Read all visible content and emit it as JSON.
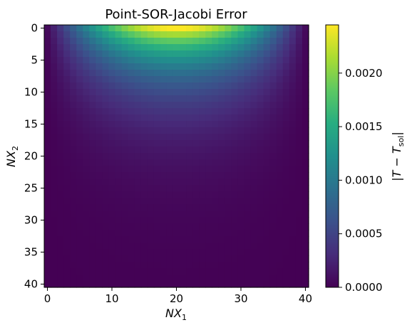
{
  "chart_data": {
    "type": "heatmap",
    "title": "Point-SOR-Jacobi Error",
    "xlabel": "NX",
    "xlabel_sub": "1",
    "ylabel": "NX",
    "ylabel_sub": "2",
    "grid": {
      "nx": 41,
      "ny": 41
    },
    "xlim": [
      -0.5,
      40.5
    ],
    "ylim": [
      40.5,
      -0.5
    ],
    "xticks": [
      0,
      10,
      20,
      30,
      40
    ],
    "yticks": [
      0,
      5,
      10,
      15,
      20,
      25,
      30,
      35,
      40
    ],
    "value_model": {
      "description_source": "estimated from visible color field",
      "peak_value": 0.00245,
      "peak_x": 19.5,
      "peak_row": 0,
      "x_shape": "sine over columns 0..40",
      "y_decay_rows": 7.0
    },
    "colorbar": {
      "label_main": "|T − T",
      "label_sub": "sol",
      "label_end": "|",
      "min": 0.0,
      "max": 0.00245,
      "ticks": [
        0.0,
        0.0005,
        0.001,
        0.0015,
        0.002
      ],
      "tick_labels": [
        "0.0000",
        "0.0005",
        "0.0010",
        "0.0015",
        "0.0020"
      ],
      "colormap": "viridis"
    }
  }
}
